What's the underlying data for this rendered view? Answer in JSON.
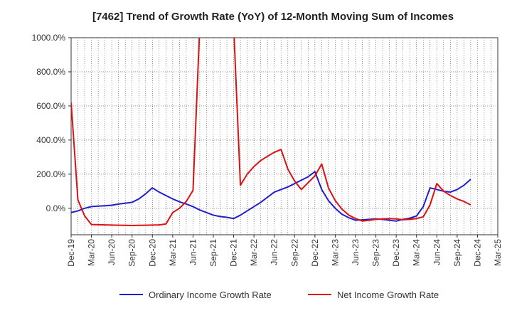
{
  "chart_data": {
    "type": "line",
    "title": "[7462]  Trend of Growth Rate (YoY) of 12-Month Moving Sum of Incomes",
    "xlabel": "",
    "ylabel": "",
    "x_ticks": [
      "Dec-19",
      "Mar-20",
      "Jun-20",
      "Sep-20",
      "Dec-20",
      "Mar-21",
      "Jun-21",
      "Sep-21",
      "Dec-21",
      "Mar-22",
      "Jun-22",
      "Sep-22",
      "Dec-22",
      "Mar-23",
      "Jun-23",
      "Sep-23",
      "Dec-23",
      "Mar-24",
      "Jun-24",
      "Sep-24",
      "Dec-24",
      "Mar-25"
    ],
    "y_ticks": [
      "0.0%",
      "200.0%",
      "400.0%",
      "600.0%",
      "800.0%",
      "1000.0%"
    ],
    "y_tick_values": [
      0,
      200,
      400,
      600,
      800,
      1000
    ],
    "ylim": [
      -155,
      1000
    ],
    "x_range_months": [
      0,
      63
    ],
    "grid": true,
    "legend_position": "bottom",
    "series": [
      {
        "name": "Ordinary Income Growth Rate",
        "color": "#1f1fcc",
        "points": [
          [
            0,
            -25
          ],
          [
            1,
            -15
          ],
          [
            2,
            0
          ],
          [
            3,
            10
          ],
          [
            4,
            13
          ],
          [
            5,
            15
          ],
          [
            6,
            18
          ],
          [
            7,
            25
          ],
          [
            8,
            30
          ],
          [
            9,
            35
          ],
          [
            10,
            55
          ],
          [
            11,
            85
          ],
          [
            12,
            120
          ],
          [
            13,
            95
          ],
          [
            14,
            75
          ],
          [
            15,
            55
          ],
          [
            16,
            38
          ],
          [
            17,
            25
          ],
          [
            18,
            10
          ],
          [
            19,
            -10
          ],
          [
            20,
            -25
          ],
          [
            21,
            -40
          ],
          [
            22,
            -48
          ],
          [
            23,
            -53
          ],
          [
            24,
            -60
          ],
          [
            25,
            -40
          ],
          [
            26,
            -15
          ],
          [
            27,
            10
          ],
          [
            28,
            35
          ],
          [
            29,
            65
          ],
          [
            30,
            95
          ],
          [
            31,
            110
          ],
          [
            32,
            125
          ],
          [
            33,
            145
          ],
          [
            34,
            165
          ],
          [
            35,
            185
          ],
          [
            36,
            215
          ],
          [
            37,
            110
          ],
          [
            38,
            45
          ],
          [
            39,
            0
          ],
          [
            40,
            -35
          ],
          [
            41,
            -55
          ],
          [
            42,
            -70
          ],
          [
            43,
            -68
          ],
          [
            44,
            -65
          ],
          [
            45,
            -62
          ],
          [
            46,
            -65
          ],
          [
            47,
            -70
          ],
          [
            48,
            -75
          ],
          [
            49,
            -65
          ],
          [
            50,
            -58
          ],
          [
            51,
            -45
          ],
          [
            52,
            10
          ],
          [
            53,
            120
          ],
          [
            54,
            110
          ],
          [
            55,
            100
          ],
          [
            56,
            95
          ],
          [
            57,
            110
          ],
          [
            58,
            135
          ],
          [
            59,
            170
          ]
        ]
      },
      {
        "name": "Net Income Growth Rate",
        "color": "#dd1111",
        "points": [
          [
            0,
            620
          ],
          [
            1,
            50
          ],
          [
            2,
            -45
          ],
          [
            3,
            -95
          ],
          [
            4,
            -96
          ],
          [
            5,
            -97
          ],
          [
            6,
            -98
          ],
          [
            7,
            -99
          ],
          [
            8,
            -100
          ],
          [
            9,
            -101
          ],
          [
            10,
            -100
          ],
          [
            11,
            -99
          ],
          [
            12,
            -98
          ],
          [
            13,
            -97
          ],
          [
            14,
            -92
          ],
          [
            15,
            -25
          ],
          [
            16,
            0
          ],
          [
            17,
            40
          ],
          [
            18,
            105
          ],
          [
            19,
            1070
          ],
          [
            24,
            1070
          ],
          [
            25,
            135
          ],
          [
            26,
            200
          ],
          [
            27,
            245
          ],
          [
            28,
            280
          ],
          [
            29,
            305
          ],
          [
            30,
            328
          ],
          [
            31,
            345
          ],
          [
            32,
            230
          ],
          [
            33,
            160
          ],
          [
            34,
            110
          ],
          [
            35,
            150
          ],
          [
            36,
            190
          ],
          [
            37,
            260
          ],
          [
            38,
            120
          ],
          [
            39,
            45
          ],
          [
            40,
            -5
          ],
          [
            41,
            -40
          ],
          [
            42,
            -60
          ],
          [
            43,
            -75
          ],
          [
            44,
            -70
          ],
          [
            45,
            -65
          ],
          [
            46,
            -62
          ],
          [
            47,
            -60
          ],
          [
            48,
            -62
          ],
          [
            49,
            -67
          ],
          [
            50,
            -65
          ],
          [
            51,
            -60
          ],
          [
            52,
            -50
          ],
          [
            53,
            20
          ],
          [
            54,
            145
          ],
          [
            55,
            100
          ],
          [
            56,
            75
          ],
          [
            57,
            55
          ],
          [
            58,
            40
          ],
          [
            59,
            20
          ]
        ]
      }
    ]
  }
}
